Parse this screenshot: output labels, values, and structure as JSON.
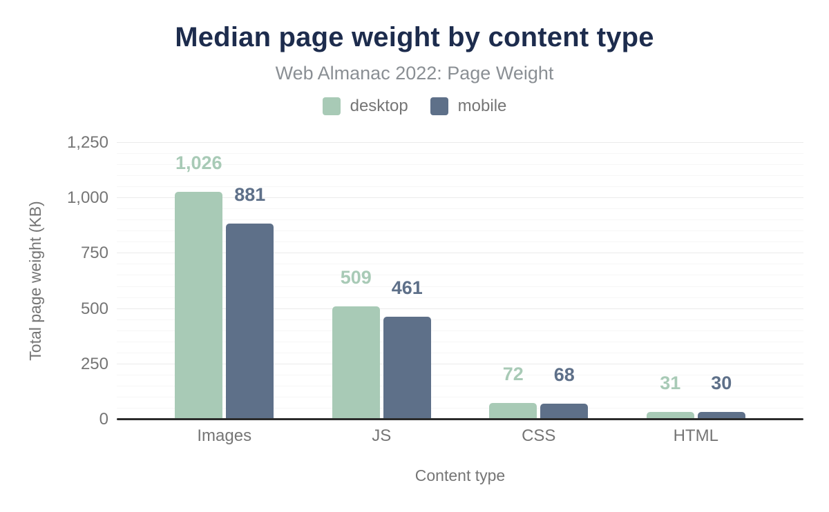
{
  "colors": {
    "title": "#1d2c4d",
    "subtitle_text": "#8a8f94",
    "axis_text": "#757575",
    "axis_line": "#2b2b2b",
    "grid_major": "#ebebeb",
    "grid_minor": "#f6f6f6",
    "background": "#ffffff",
    "desktop": "#a8cab6",
    "mobile": "#5e7089"
  },
  "chart_data": {
    "type": "bar",
    "title": "Median page weight by content type",
    "subtitle": "Web Almanac 2022: Page Weight",
    "categories": [
      "Images",
      "JS",
      "CSS",
      "HTML"
    ],
    "series": [
      {
        "name": "desktop",
        "color": "#a8cab6",
        "values": [
          1026,
          509,
          72,
          31
        ],
        "labels": [
          "1,026",
          "509",
          "72",
          "31"
        ]
      },
      {
        "name": "mobile",
        "color": "#5e7089",
        "values": [
          881,
          461,
          68,
          30
        ],
        "labels": [
          "881",
          "461",
          "68",
          "30"
        ]
      }
    ],
    "xlabel": "Content type",
    "ylabel": "Total page weight (KB)",
    "ylim": [
      0,
      1250
    ],
    "yticks": [
      0,
      250,
      500,
      750,
      1000,
      1250
    ],
    "ytick_labels": [
      "0",
      "250",
      "500",
      "750",
      "1,000",
      "1,250"
    ],
    "minor_grid_step": 50,
    "grid": true,
    "legend_position": "top",
    "bar_value_labels_shown": true
  }
}
